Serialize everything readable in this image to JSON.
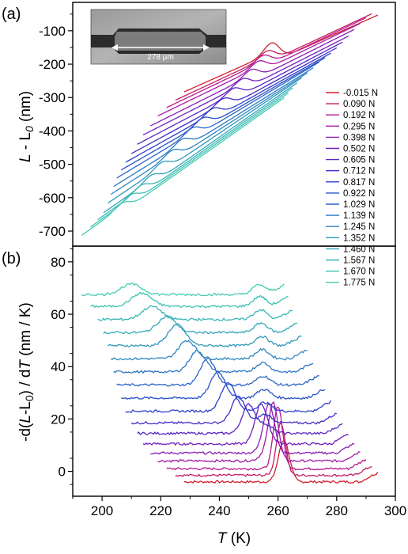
{
  "panels": {
    "a": "(a)",
    "b": "(b)"
  },
  "inset": {
    "scale_label": "278 µm"
  },
  "chart_data": [
    {
      "type": "line",
      "panel": "(a)",
      "ylabel_main": "L",
      "ylabel_rest": " - L",
      "ylabel_sub": "0",
      "ylabel_unit": " (nm)",
      "xlim": [
        190,
        300
      ],
      "ylim": [
        -745,
        -15
      ],
      "yticks": [
        -700,
        -600,
        -500,
        -400,
        -300,
        -200,
        -100
      ],
      "tick_labels": [
        "-700",
        "-600",
        "-500",
        "-400",
        "-300",
        "-200",
        "-100"
      ],
      "grid": false,
      "legend_position": "right",
      "series_names": [
        "-0.015 N",
        "0.090 N",
        "0.192 N",
        "0.295 N",
        "0.398 N",
        "0.502 N",
        "0.605 N",
        "0.712 N",
        "0.817 N",
        "0.922 N",
        "1.029 N",
        "1.139 N",
        "1.245 N",
        "1.352 N",
        "1.460 N",
        "1.567 N",
        "1.670 N",
        "1.775 N"
      ],
      "colors": [
        "#d0202c",
        "#c51c62",
        "#b8198f",
        "#a21aaa",
        "#8a1cb6",
        "#7020bd",
        "#5826c3",
        "#4230c8",
        "#2f3ecb",
        "#2850ca",
        "#2a64c7",
        "#2c77c3",
        "#2e88c0",
        "#3098bc",
        "#33a7ba",
        "#38b5b6",
        "#3ec1b3",
        "#45ccb1"
      ],
      "series_params": {
        "T_start": [
          228,
          225,
          222,
          219,
          216.5,
          214,
          212,
          210,
          208,
          206.5,
          205,
          204,
          203,
          202,
          200.5,
          198.5,
          196,
          193
        ],
        "T_end": [
          294,
          292,
          290,
          288,
          286,
          284,
          282,
          280,
          278,
          276,
          274,
          272,
          270,
          268,
          266.5,
          265,
          263.5,
          262
        ],
        "T_transition": [
          260,
          258.5,
          257,
          255.5,
          253,
          250,
          247,
          243.5,
          240,
          236.5,
          233,
          229.5,
          226,
          222.5,
          219,
          215.5,
          212,
          209
        ],
        "L_at_start": [
          -283,
          -308,
          -330,
          -355,
          -385,
          -412,
          -440,
          -468,
          -494,
          -517,
          -541,
          -566,
          -590,
          -616,
          -645,
          -666,
          -688,
          -713
        ],
        "L_at_end": [
          -25,
          -33,
          -45,
          -62,
          -80,
          -100,
          -118,
          -135,
          -151,
          -165,
          -178,
          -195,
          -210,
          -225,
          -240,
          -255,
          -270,
          -285
        ]
      }
    },
    {
      "type": "line",
      "panel": "(b)",
      "ylabel_pre": "-d(",
      "ylabel_L": "L",
      "ylabel_mid": "-L",
      "ylabel_sub": "0",
      "ylabel_post": ") / d",
      "ylabel_T": "T",
      "ylabel_unit": " (nm / K)",
      "xlabel_T": "T",
      "xlabel_unit": " (K)",
      "xlim": [
        190,
        300
      ],
      "ylim": [
        -9.5,
        86
      ],
      "xticks": [
        200,
        220,
        240,
        260,
        280,
        300
      ],
      "x_tick_labels": [
        "200",
        "220",
        "240",
        "260",
        "280",
        "300"
      ],
      "yticks": [
        0,
        20,
        40,
        60,
        80
      ],
      "y_tick_labels": [
        "0",
        "20",
        "40",
        "60",
        "80"
      ],
      "grid": false,
      "series_params": {
        "offset": [
          -4,
          -1.5,
          1,
          4,
          7,
          10.5,
          14.5,
          18.5,
          23,
          28,
          33,
          38,
          43,
          48,
          53,
          58,
          63,
          67.5
        ],
        "peak_T": [
          262,
          261,
          260,
          258.5,
          257,
          254,
          250,
          246.5,
          243,
          239.5,
          236,
          232.5,
          229,
          225.5,
          222,
          217,
          213.5,
          210
        ],
        "peak_height": [
          16,
          20,
          24,
          20,
          16,
          13,
          11,
          10,
          11,
          10,
          10,
          8,
          7,
          8,
          6,
          5,
          5,
          4
        ],
        "peak_width": [
          2.6,
          2.2,
          2.2,
          2.3,
          2.5,
          2.8,
          3.1,
          3.3,
          3.4,
          3.5,
          3.6,
          3.8,
          4.0,
          4.2,
          4.4,
          4.6,
          4.8,
          5.0
        ],
        "hump_height": [
          4.5,
          4.0,
          3.8,
          3.5,
          3.3,
          3.3,
          3.3,
          3.3,
          3.3,
          3.3,
          3.4,
          3.5,
          3.5,
          3.6,
          3.6,
          3.7,
          3.8,
          3.8
        ]
      }
    }
  ]
}
